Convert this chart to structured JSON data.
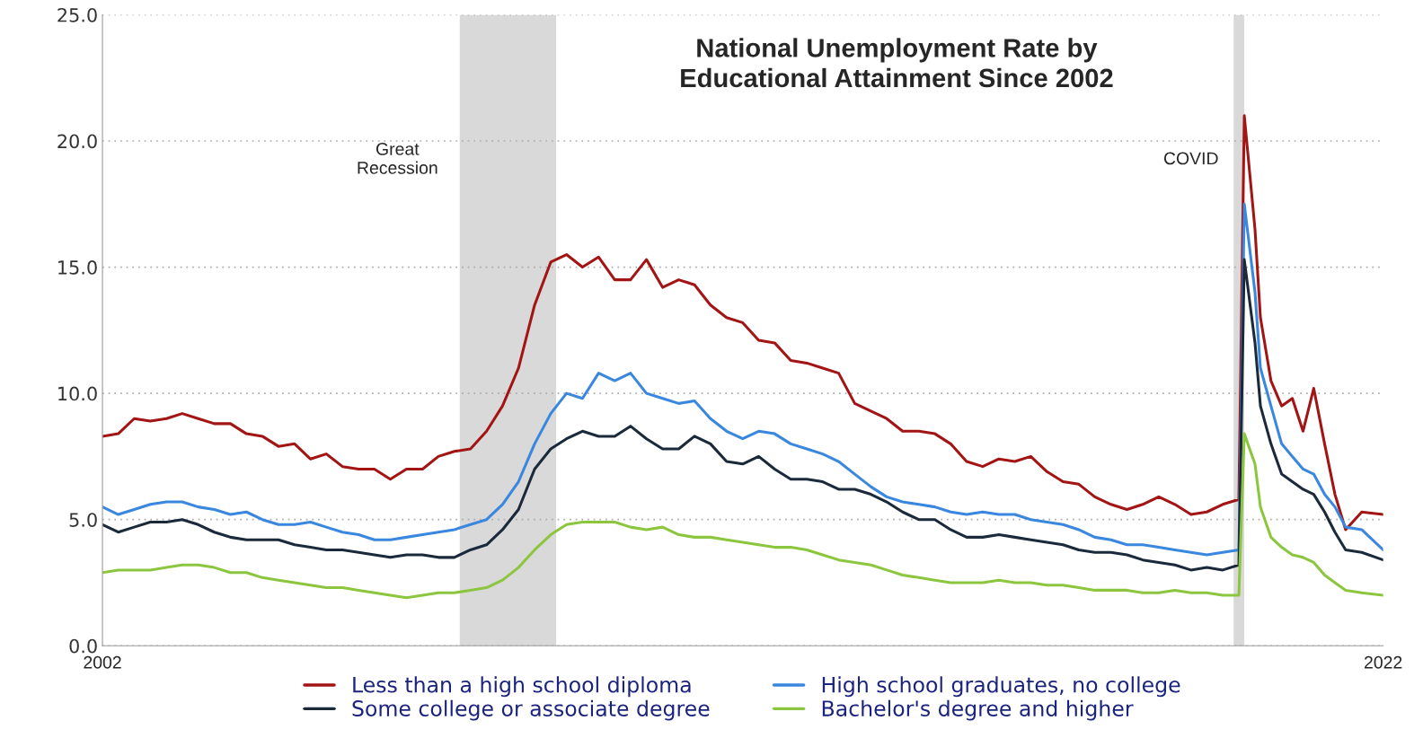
{
  "chart_data": {
    "type": "line",
    "title": "National Unemployment Rate by\nEducational Attainment Since 2002",
    "x": [
      "2002-01",
      "2002-04",
      "2002-07",
      "2002-10",
      "2003-01",
      "2003-04",
      "2003-07",
      "2003-10",
      "2004-01",
      "2004-04",
      "2004-07",
      "2004-10",
      "2005-01",
      "2005-04",
      "2005-07",
      "2005-10",
      "2006-01",
      "2006-04",
      "2006-07",
      "2006-10",
      "2007-01",
      "2007-04",
      "2007-07",
      "2007-10",
      "2008-01",
      "2008-04",
      "2008-07",
      "2008-10",
      "2009-01",
      "2009-04",
      "2009-07",
      "2009-10",
      "2010-01",
      "2010-04",
      "2010-07",
      "2010-10",
      "2011-01",
      "2011-04",
      "2011-07",
      "2011-10",
      "2012-01",
      "2012-04",
      "2012-07",
      "2012-10",
      "2013-01",
      "2013-04",
      "2013-07",
      "2013-10",
      "2014-01",
      "2014-04",
      "2014-07",
      "2014-10",
      "2015-01",
      "2015-04",
      "2015-07",
      "2015-10",
      "2016-01",
      "2016-04",
      "2016-07",
      "2016-10",
      "2017-01",
      "2017-04",
      "2017-07",
      "2017-10",
      "2018-01",
      "2018-04",
      "2018-07",
      "2018-10",
      "2019-01",
      "2019-04",
      "2019-07",
      "2019-10",
      "2019-11",
      "2020-01",
      "2020-02",
      "2020-04",
      "2020-06",
      "2020-08",
      "2020-10",
      "2020-12",
      "2021-02",
      "2021-04",
      "2021-06",
      "2021-09",
      "2022-01"
    ],
    "series": [
      {
        "name": "Less than a high school diploma",
        "color": "#a31515",
        "values": [
          8.3,
          8.4,
          9.0,
          8.9,
          9.0,
          9.2,
          9.0,
          8.8,
          8.8,
          8.4,
          8.3,
          7.9,
          8.0,
          7.4,
          7.6,
          7.1,
          7.0,
          7.0,
          6.6,
          7.0,
          7.0,
          7.5,
          7.7,
          7.8,
          8.5,
          9.5,
          11.0,
          13.5,
          15.2,
          15.5,
          15.0,
          15.4,
          14.5,
          14.5,
          15.3,
          14.2,
          14.5,
          14.3,
          13.5,
          13.0,
          12.8,
          12.1,
          12.0,
          11.3,
          11.2,
          11.0,
          10.8,
          9.6,
          9.3,
          9.0,
          8.5,
          8.5,
          8.4,
          8.0,
          7.3,
          7.1,
          7.4,
          7.3,
          7.5,
          6.9,
          6.5,
          6.4,
          5.9,
          5.6,
          5.4,
          5.6,
          5.9,
          5.6,
          5.2,
          5.3,
          5.6,
          5.8,
          21.0,
          16.5,
          13.0,
          10.5,
          9.5,
          9.8,
          8.5,
          10.2,
          8.0,
          6.0,
          4.6,
          5.3,
          5.2
        ]
      },
      {
        "name": "High school graduates, no college",
        "color": "#3a87e0",
        "values": [
          5.5,
          5.2,
          5.4,
          5.6,
          5.7,
          5.7,
          5.5,
          5.4,
          5.2,
          5.3,
          5.0,
          4.8,
          4.8,
          4.9,
          4.7,
          4.5,
          4.4,
          4.2,
          4.2,
          4.3,
          4.4,
          4.5,
          4.6,
          4.8,
          5.0,
          5.6,
          6.5,
          8.0,
          9.2,
          10.0,
          9.8,
          10.8,
          10.5,
          10.8,
          10.0,
          9.8,
          9.6,
          9.7,
          9.0,
          8.5,
          8.2,
          8.5,
          8.4,
          8.0,
          7.8,
          7.6,
          7.3,
          6.8,
          6.3,
          5.9,
          5.7,
          5.6,
          5.5,
          5.3,
          5.2,
          5.3,
          5.2,
          5.2,
          5.0,
          4.9,
          4.8,
          4.6,
          4.3,
          4.2,
          4.0,
          4.0,
          3.9,
          3.8,
          3.7,
          3.6,
          3.7,
          3.8,
          17.5,
          14.0,
          11.0,
          9.5,
          8.0,
          7.5,
          7.0,
          6.8,
          6.0,
          5.5,
          4.7,
          4.6,
          3.8
        ]
      },
      {
        "name": "Some college or associate degree",
        "color": "#1b2a3a",
        "values": [
          4.8,
          4.5,
          4.7,
          4.9,
          4.9,
          5.0,
          4.8,
          4.5,
          4.3,
          4.2,
          4.2,
          4.2,
          4.0,
          3.9,
          3.8,
          3.8,
          3.7,
          3.6,
          3.5,
          3.6,
          3.6,
          3.5,
          3.5,
          3.8,
          4.0,
          4.6,
          5.4,
          7.0,
          7.8,
          8.2,
          8.5,
          8.3,
          8.3,
          8.7,
          8.2,
          7.8,
          7.8,
          8.3,
          8.0,
          7.3,
          7.2,
          7.5,
          7.0,
          6.6,
          6.6,
          6.5,
          6.2,
          6.2,
          6.0,
          5.7,
          5.3,
          5.0,
          5.0,
          4.6,
          4.3,
          4.3,
          4.4,
          4.3,
          4.2,
          4.1,
          4.0,
          3.8,
          3.7,
          3.7,
          3.6,
          3.4,
          3.3,
          3.2,
          3.0,
          3.1,
          3.0,
          3.2,
          15.3,
          12.0,
          9.5,
          8.0,
          6.8,
          6.5,
          6.2,
          6.0,
          5.3,
          4.5,
          3.8,
          3.7,
          3.4
        ]
      },
      {
        "name": "Bachelor's degree and higher",
        "color": "#8cc63f",
        "values": [
          2.9,
          3.0,
          3.0,
          3.0,
          3.1,
          3.2,
          3.2,
          3.1,
          2.9,
          2.9,
          2.7,
          2.6,
          2.5,
          2.4,
          2.3,
          2.3,
          2.2,
          2.1,
          2.0,
          1.9,
          2.0,
          2.1,
          2.1,
          2.2,
          2.3,
          2.6,
          3.1,
          3.8,
          4.4,
          4.8,
          4.9,
          4.9,
          4.9,
          4.7,
          4.6,
          4.7,
          4.4,
          4.3,
          4.3,
          4.2,
          4.1,
          4.0,
          3.9,
          3.9,
          3.8,
          3.6,
          3.4,
          3.3,
          3.2,
          3.0,
          2.8,
          2.7,
          2.6,
          2.5,
          2.5,
          2.5,
          2.6,
          2.5,
          2.5,
          2.4,
          2.4,
          2.3,
          2.2,
          2.2,
          2.2,
          2.1,
          2.1,
          2.2,
          2.1,
          2.1,
          2.0,
          2.0,
          8.4,
          7.2,
          5.5,
          4.3,
          3.9,
          3.6,
          3.5,
          3.3,
          2.8,
          2.5,
          2.2,
          2.1,
          2.0
        ]
      }
    ],
    "xlim": [
      "2002-01",
      "2022-01"
    ],
    "xticks": [
      {
        "value": "2002-01",
        "label": "2002"
      },
      {
        "value": "2022-01",
        "label": "2022"
      }
    ],
    "ylim": [
      0,
      25
    ],
    "yticks": [
      {
        "value": 0,
        "label": "0.0"
      },
      {
        "value": 5,
        "label": "5.0"
      },
      {
        "value": 10,
        "label": "10.0"
      },
      {
        "value": 15,
        "label": "15.0"
      },
      {
        "value": 20,
        "label": "20.0"
      },
      {
        "value": 25,
        "label": "25.0"
      }
    ],
    "bands": [
      {
        "axis": "x",
        "from": "2007-08",
        "to": "2009-02",
        "label": "Great\nRecession",
        "color": "#d9d9d9"
      },
      {
        "axis": "x",
        "from": "2019-09",
        "to": "2019-11",
        "label": "COVID",
        "color": "#d9d9d9"
      }
    ],
    "grid": "y",
    "legend": "bottom",
    "line_style": "solid",
    "marker": "none"
  }
}
